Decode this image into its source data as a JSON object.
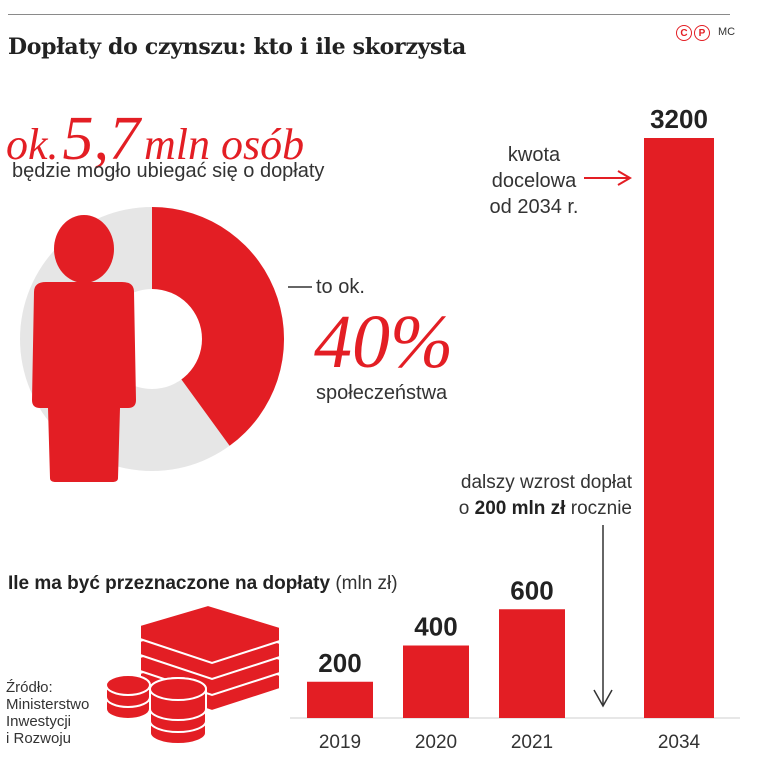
{
  "header": {
    "title": "Dopłaty do czynszu: kto i ile skorzysta",
    "logo_letters": [
      "C",
      "P"
    ],
    "initials": "MC"
  },
  "headline": {
    "prefix": "ok.",
    "number": "5,7",
    "suffix": "mln osób",
    "subtext": "będzie mogło ubiegać się o dopłaty"
  },
  "share": {
    "prefix": "to ok.",
    "value": "40%",
    "value_fraction": 0.4,
    "suffix": "społeczeństwa"
  },
  "annotations": {
    "target": "kwota docelowa od 2034 r.",
    "growth_pre": "dalszy wzrost dopłat",
    "growth_line2_pre": "o ",
    "growth_bold": "200 mln zł",
    "growth_post": " rocznie"
  },
  "chart_title": {
    "bold": "Ile ma być przeznaczone na dopłaty",
    "unit": "(mln zł)"
  },
  "source": {
    "line1": "Źródło:",
    "line2": "Ministerstwo",
    "line3": "Inwestycji",
    "line4": "i Rozwoju"
  },
  "colors": {
    "accent": "#e31e24",
    "donut_rest": "#e6e6e6",
    "text": "#222222"
  },
  "icons": [
    "person-icon",
    "money-stack-icon",
    "coins-icon",
    "copyright-logo-icon"
  ],
  "chart_data": {
    "type": "bar",
    "title": "Ile ma być przeznaczone na dopłaty",
    "ylabel": "(mln zł)",
    "xlabel": "",
    "categories": [
      "2019",
      "2020",
      "2021",
      "2034"
    ],
    "values": [
      200,
      400,
      600,
      3200
    ],
    "ylim": [
      0,
      3200
    ],
    "grid": false,
    "legend": "none"
  }
}
